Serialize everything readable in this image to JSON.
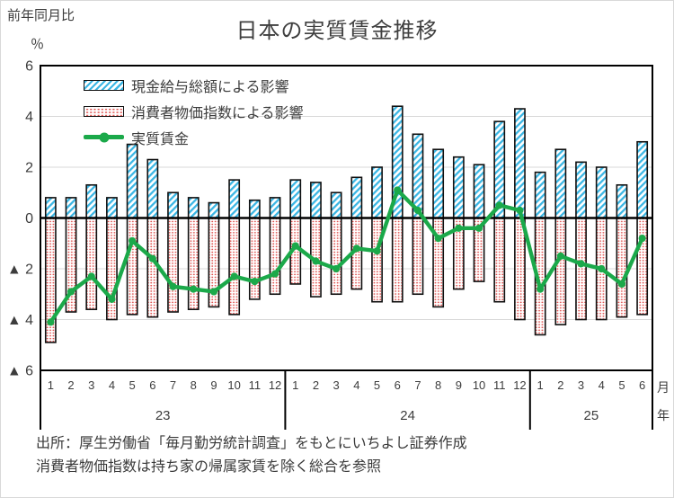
{
  "header": {
    "yoy_label": "前年同月比",
    "unit_label": "％",
    "title": "日本の実質賃金推移"
  },
  "footer": {
    "line1": "出所：厚生労働省「毎月勤労統計調査」をもとにいちよし証券作成",
    "line2": "消費者物価指数は持ち家の帰属家賃を除く総合を参照"
  },
  "chart_data": {
    "type": "bar",
    "subtype": "stacked-contribution-bars-with-line",
    "title": "日本の実質賃金推移",
    "ylabel": "前年同月比 ％",
    "ylim": [
      -6,
      6
    ],
    "grid_values": [
      4,
      2,
      -2,
      -4
    ],
    "y_ticks": {
      "values": [
        6,
        4,
        2,
        0,
        -2,
        -4,
        -6
      ],
      "labels": [
        "6",
        "4",
        "2",
        "0",
        "▲ 2",
        "▲ 4",
        "▲ 6"
      ]
    },
    "x_month_labels": [
      "1",
      "2",
      "3",
      "4",
      "5",
      "6",
      "7",
      "8",
      "9",
      "10",
      "11",
      "12",
      "1",
      "2",
      "3",
      "4",
      "5",
      "6",
      "7",
      "8",
      "9",
      "10",
      "11",
      "12",
      "1",
      "2",
      "3",
      "4",
      "5",
      "6"
    ],
    "year_groups": [
      {
        "label": "23",
        "from": 0,
        "to": 12
      },
      {
        "label": "24",
        "from": 12,
        "to": 24
      },
      {
        "label": "25",
        "from": 24,
        "to": 30
      }
    ],
    "axis_suffix": {
      "month": "月",
      "year": "年"
    },
    "legend_position": "top-left-inside",
    "colors": {
      "cash_bar_stripe": "#3ab6e4",
      "cpi_bar_dot": "#e0514e",
      "real_wage_line": "#1ba94a",
      "bar_border": "#101010",
      "zero_line": "#000000",
      "gridline": "#d8d8d8",
      "text": "#3d3d3d"
    },
    "series": [
      {
        "name": "現金給与総額による影響",
        "type": "bar",
        "pattern": "blue-diagonal-hatch",
        "values": [
          0.8,
          0.8,
          1.3,
          0.8,
          2.9,
          2.3,
          1.0,
          0.8,
          0.6,
          1.5,
          0.7,
          0.8,
          1.5,
          1.4,
          1.0,
          1.6,
          2.0,
          4.4,
          3.3,
          2.7,
          2.4,
          2.1,
          3.8,
          4.3,
          1.8,
          2.7,
          2.2,
          2.0,
          1.3,
          3.0
        ]
      },
      {
        "name": "消費者物価指数による影響",
        "type": "bar",
        "pattern": "red-dots",
        "values": [
          -4.9,
          -3.7,
          -3.6,
          -4.0,
          -3.8,
          -3.9,
          -3.7,
          -3.6,
          -3.5,
          -3.8,
          -3.2,
          -3.0,
          -2.6,
          -3.1,
          -3.0,
          -2.8,
          -3.3,
          -3.3,
          -3.0,
          -3.5,
          -2.8,
          -2.5,
          -3.3,
          -4.0,
          -4.6,
          -4.2,
          -4.0,
          -4.0,
          -3.9,
          -3.8
        ]
      },
      {
        "name": "実質賃金",
        "type": "line",
        "values": [
          -4.1,
          -2.9,
          -2.3,
          -3.2,
          -0.9,
          -1.6,
          -2.7,
          -2.8,
          -2.9,
          -2.3,
          -2.5,
          -2.2,
          -1.1,
          -1.7,
          -2.0,
          -1.2,
          -1.3,
          1.1,
          0.3,
          -0.8,
          -0.4,
          -0.4,
          0.5,
          0.3,
          -2.8,
          -1.5,
          -1.8,
          -2.0,
          -2.6,
          -0.8
        ]
      }
    ]
  }
}
